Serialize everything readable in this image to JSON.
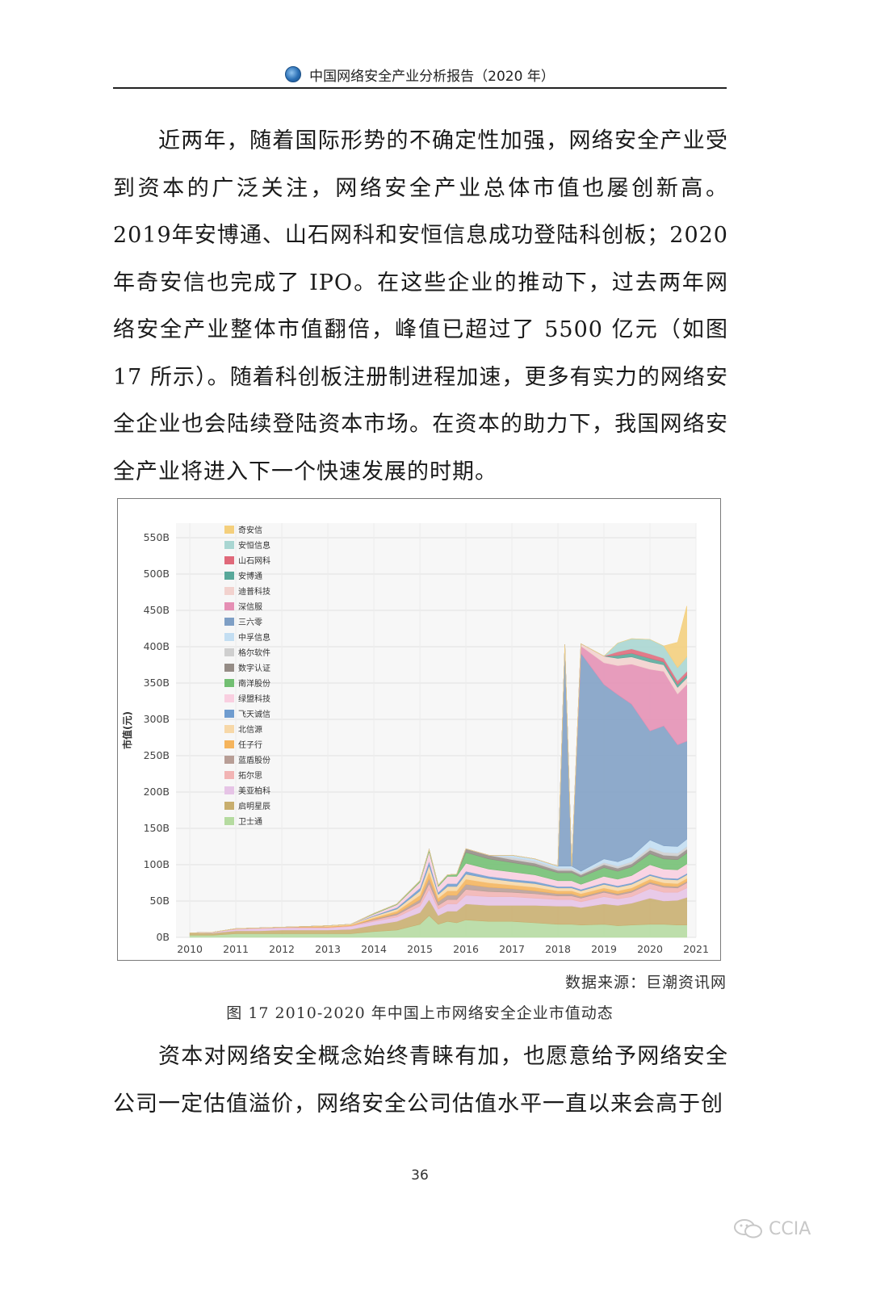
{
  "header": {
    "title": "中国网络安全产业分析报告（2020 年）"
  },
  "paragraph1": "近两年，随着国际形势的不确定性加强，网络安全产业受到资本的广泛关注，网络安全产业总体市值也屡创新高。2019年安博通、山石网科和安恒信息成功登陆科创板；2020 年奇安信也完成了 IPO。在这些企业的推动下，过去两年网络安全产业整体市值翻倍，峰值已超过了 5500 亿元（如图 17 所示）。随着科创板注册制进程加速，更多有实力的网络安全企业也会陆续登陆资本市场。在资本的助力下，我国网络安全产业将进入下一个快速发展的时期。",
  "paragraph2": "资本对网络安全概念始终青睐有加，也愿意给予网络安全公司一定估值溢价，网络安全公司估值水平一直以来会高于创",
  "figure": {
    "source": "数据来源：巨潮资讯网",
    "caption": "图 17 2010-2020 年中国上市网络安全企业市值动态"
  },
  "page_number": "36",
  "watermark": {
    "text": "CCIA",
    "icon": "wechat-icon"
  },
  "chart_data": {
    "type": "area",
    "stacked": true,
    "title": "",
    "xlabel": "",
    "ylabel": "市值(元)",
    "xlim": [
      2009.7,
      2021.0
    ],
    "ylim": [
      0,
      570
    ],
    "x_ticks": [
      "2010",
      "2011",
      "2012",
      "2013",
      "2014",
      "2015",
      "2016",
      "2017",
      "2018",
      "2019",
      "2020",
      "2021"
    ],
    "y_ticks": [
      {
        "value": 0,
        "label": "0B"
      },
      {
        "value": 50,
        "label": "50B"
      },
      {
        "value": 100,
        "label": "100B"
      },
      {
        "value": 150,
        "label": "150B"
      },
      {
        "value": 200,
        "label": "200B"
      },
      {
        "value": 250,
        "label": "250B"
      },
      {
        "value": 300,
        "label": "300B"
      },
      {
        "value": 350,
        "label": "350B"
      },
      {
        "value": 400,
        "label": "400B"
      },
      {
        "value": 450,
        "label": "450B"
      },
      {
        "value": 500,
        "label": "500B"
      },
      {
        "value": 550,
        "label": "550B"
      }
    ],
    "grid": true,
    "legend_position": "top-left",
    "x": [
      2010.0,
      2010.5,
      2011.0,
      2011.5,
      2012.0,
      2012.5,
      2013.0,
      2013.5,
      2014.0,
      2014.5,
      2015.0,
      2015.2,
      2015.4,
      2015.6,
      2015.8,
      2016.0,
      2016.5,
      2017.0,
      2017.5,
      2018.0,
      2018.15,
      2018.3,
      2018.5,
      2019.0,
      2019.3,
      2019.6,
      2020.0,
      2020.3,
      2020.6,
      2020.8
    ],
    "series": [
      {
        "name": "卫士通",
        "color": "#b5dba0",
        "values": [
          3,
          3,
          5,
          5,
          5,
          5,
          5,
          5,
          8,
          10,
          18,
          30,
          18,
          22,
          20,
          24,
          22,
          22,
          20,
          18,
          18,
          18,
          17,
          18,
          16,
          17,
          18,
          18,
          17,
          17
        ]
      },
      {
        "name": "启明星辰",
        "color": "#c8ae6e",
        "values": [
          3,
          3,
          4,
          4,
          5,
          5,
          5,
          6,
          9,
          12,
          16,
          22,
          12,
          14,
          16,
          22,
          22,
          22,
          24,
          25,
          25,
          25,
          24,
          28,
          28,
          30,
          36,
          32,
          34,
          38
        ]
      },
      {
        "name": "美亚柏科",
        "color": "#e6c4e6",
        "values": [
          0,
          1,
          2,
          3,
          3,
          3,
          3,
          4,
          5,
          6,
          9,
          14,
          9,
          10,
          10,
          12,
          12,
          12,
          10,
          9,
          9,
          9,
          8,
          10,
          9,
          9,
          13,
          12,
          11,
          13
        ]
      },
      {
        "name": "拓尔思",
        "color": "#f2b4b4",
        "values": [
          0,
          0,
          1,
          1,
          1,
          1,
          1,
          1,
          2,
          3,
          5,
          8,
          5,
          6,
          6,
          8,
          7,
          6,
          6,
          5,
          5,
          5,
          5,
          6,
          5,
          6,
          7,
          7,
          6,
          7
        ]
      },
      {
        "name": "蓝盾股份",
        "color": "#b89e96",
        "values": [
          0,
          0,
          0,
          0,
          0,
          0,
          0,
          0,
          1,
          2,
          4,
          7,
          5,
          6,
          6,
          7,
          6,
          5,
          4,
          3,
          3,
          3,
          2,
          2,
          2,
          2,
          2,
          2,
          2,
          2
        ]
      },
      {
        "name": "任子行",
        "color": "#f5b45c",
        "values": [
          0,
          0,
          0,
          0,
          0,
          1,
          1,
          1,
          2,
          3,
          6,
          9,
          5,
          6,
          6,
          7,
          6,
          5,
          5,
          4,
          4,
          4,
          4,
          4,
          4,
          4,
          4,
          4,
          4,
          4
        ]
      },
      {
        "name": "北信源",
        "color": "#f7d8a8",
        "values": [
          0,
          0,
          0,
          0,
          0,
          0,
          1,
          1,
          2,
          3,
          6,
          9,
          5,
          6,
          6,
          7,
          6,
          5,
          5,
          4,
          4,
          4,
          4,
          5,
          5,
          5,
          5,
          5,
          5,
          5
        ]
      },
      {
        "name": "飞天诚信",
        "color": "#6f9ccf",
        "values": [
          0,
          0,
          0,
          0,
          0,
          0,
          0,
          0,
          1,
          2,
          4,
          6,
          3,
          4,
          4,
          4,
          3,
          3,
          3,
          2,
          2,
          2,
          2,
          2,
          2,
          2,
          2,
          2,
          2,
          2
        ]
      },
      {
        "name": "绿盟科技",
        "color": "#f9cfe0",
        "values": [
          0,
          0,
          0,
          0,
          0,
          0,
          0,
          0,
          2,
          4,
          8,
          13,
          8,
          10,
          10,
          11,
          10,
          10,
          9,
          8,
          8,
          8,
          7,
          9,
          9,
          10,
          13,
          12,
          12,
          13
        ]
      },
      {
        "name": "南洋股份",
        "color": "#72bf72",
        "values": [
          0,
          0,
          0,
          0,
          0,
          0,
          0,
          0,
          1,
          1,
          2,
          3,
          2,
          2,
          3,
          15,
          14,
          13,
          12,
          11,
          11,
          11,
          10,
          12,
          11,
          12,
          15,
          14,
          14,
          15
        ]
      },
      {
        "name": "数字认证",
        "color": "#958c86",
        "values": [
          0,
          0,
          0,
          0,
          0,
          0,
          0,
          0,
          0,
          0,
          0,
          0,
          0,
          0,
          0,
          5,
          5,
          4,
          4,
          3,
          3,
          3,
          3,
          4,
          4,
          4,
          5,
          5,
          5,
          5
        ]
      },
      {
        "name": "格尔软件",
        "color": "#cfcfcf",
        "values": [
          0,
          0,
          0,
          0,
          0,
          0,
          0,
          0,
          0,
          0,
          0,
          0,
          0,
          0,
          0,
          0,
          0,
          3,
          3,
          3,
          3,
          3,
          2,
          3,
          3,
          3,
          4,
          4,
          4,
          4
        ]
      },
      {
        "name": "中孚信息",
        "color": "#c3def2",
        "values": [
          0,
          0,
          0,
          0,
          0,
          0,
          0,
          0,
          0,
          0,
          0,
          0,
          0,
          0,
          0,
          0,
          0,
          3,
          3,
          3,
          3,
          3,
          3,
          5,
          6,
          7,
          10,
          9,
          9,
          10
        ]
      },
      {
        "name": "三六零",
        "color": "#7f9fc5",
        "values": [
          0,
          0,
          0,
          0,
          0,
          0,
          0,
          0,
          0,
          0,
          0,
          0,
          0,
          0,
          0,
          0,
          0,
          0,
          0,
          0,
          305,
          0,
          300,
          240,
          230,
          210,
          150,
          165,
          140,
          135
        ]
      },
      {
        "name": "深信服",
        "color": "#e58fb4",
        "values": [
          0,
          0,
          0,
          0,
          0,
          0,
          0,
          0,
          0,
          0,
          0,
          0,
          0,
          0,
          0,
          0,
          0,
          0,
          0,
          0,
          0,
          0,
          10,
          30,
          40,
          55,
          85,
          75,
          70,
          78
        ]
      },
      {
        "name": "迪普科技",
        "color": "#f2d2ce",
        "values": [
          0,
          0,
          0,
          0,
          0,
          0,
          0,
          0,
          0,
          0,
          0,
          0,
          0,
          0,
          0,
          0,
          0,
          0,
          0,
          0,
          0,
          0,
          3,
          9,
          10,
          10,
          10,
          9,
          9,
          9
        ]
      },
      {
        "name": "安博通",
        "color": "#58a89a",
        "values": [
          0,
          0,
          0,
          0,
          0,
          0,
          0,
          0,
          0,
          0,
          0,
          0,
          0,
          0,
          0,
          0,
          0,
          0,
          0,
          0,
          0,
          0,
          0,
          0,
          4,
          5,
          5,
          4,
          4,
          4
        ]
      },
      {
        "name": "山石网科",
        "color": "#e0697a",
        "values": [
          0,
          0,
          0,
          0,
          0,
          0,
          0,
          0,
          0,
          0,
          0,
          0,
          0,
          0,
          0,
          0,
          0,
          0,
          0,
          0,
          0,
          0,
          0,
          0,
          5,
          6,
          6,
          5,
          5,
          5
        ]
      },
      {
        "name": "安恒信息",
        "color": "#a9d6d2",
        "values": [
          0,
          0,
          0,
          0,
          0,
          0,
          0,
          0,
          0,
          0,
          0,
          0,
          0,
          0,
          0,
          0,
          0,
          0,
          0,
          0,
          0,
          0,
          0,
          0,
          12,
          14,
          20,
          17,
          18,
          20
        ]
      },
      {
        "name": "奇安信",
        "color": "#f4cf7c",
        "values": [
          0,
          0,
          0,
          0,
          0,
          0,
          0,
          0,
          0,
          0,
          0,
          0,
          0,
          0,
          0,
          0,
          0,
          0,
          0,
          0,
          0,
          0,
          0,
          0,
          0,
          0,
          0,
          0,
          35,
          70
        ]
      }
    ]
  }
}
